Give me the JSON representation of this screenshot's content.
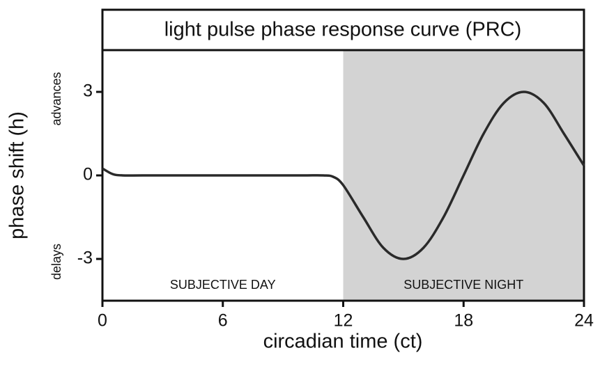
{
  "chart_data": {
    "type": "line",
    "title": "light pulse phase response curve (PRC)",
    "x_label": "circadian time (ct)",
    "y_label": "phase shift (h)",
    "annotations": {
      "advances": "advances",
      "delays": "delays",
      "day": "SUBJECTIVE DAY",
      "night": "SUBJECTIVE NIGHT"
    },
    "shaded_region": [
      12,
      24
    ],
    "shade_color": "#d3d3d3",
    "x": [
      0,
      0.5,
      1,
      2,
      4,
      6,
      8,
      10,
      11,
      11.5,
      12,
      13,
      14,
      15,
      16,
      17,
      18,
      19,
      20,
      21,
      22,
      23,
      24
    ],
    "series": [
      {
        "name": "PRC",
        "color": "#2a2a2a",
        "values": [
          0.25,
          0.05,
          0,
          0,
          0,
          0,
          0,
          0,
          0,
          -0.05,
          -0.35,
          -1.5,
          -2.6,
          -3,
          -2.6,
          -1.5,
          0,
          1.5,
          2.6,
          3,
          2.6,
          1.5,
          0.35
        ]
      }
    ],
    "xlim": [
      0,
      24
    ],
    "xticks": [
      0,
      6,
      12,
      18,
      24
    ],
    "ylim": [
      -4.5,
      4.5
    ],
    "yticks": [
      -3,
      0,
      3
    ]
  }
}
